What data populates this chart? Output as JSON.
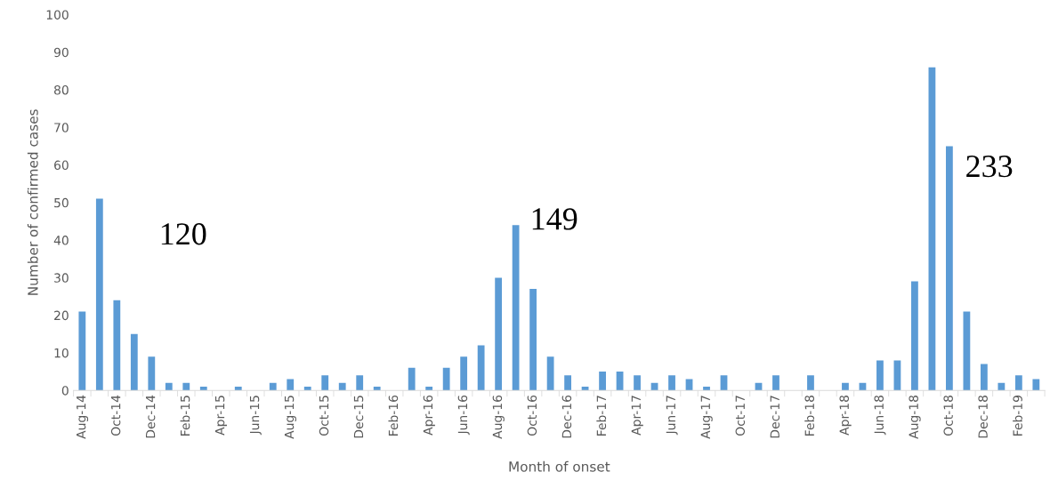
{
  "chart_data": {
    "type": "bar",
    "xlabel": "Month of onset",
    "ylabel": "Number of confirmed cases",
    "categories": [
      "Aug-14",
      null,
      "Oct-14",
      null,
      "Dec-14",
      null,
      "Feb-15",
      null,
      "Apr-15",
      null,
      "Jun-15",
      null,
      "Aug-15",
      null,
      "Oct-15",
      null,
      "Dec-15",
      null,
      "Feb-16",
      null,
      "Apr-16",
      null,
      "Jun-16",
      null,
      "Aug-16",
      null,
      "Oct-16",
      null,
      "Dec-16",
      null,
      "Feb-17",
      null,
      "Apr-17",
      null,
      "Jun-17",
      null,
      "Aug-17",
      null,
      "Oct-17",
      null,
      "Dec-17",
      null,
      "Feb-18",
      null,
      "Apr-18",
      null,
      "Jun-18",
      null,
      "Aug-18",
      null,
      "Oct-18",
      null,
      "Dec-18",
      null,
      "Feb-19",
      null
    ],
    "values": [
      21,
      51,
      24,
      15,
      9,
      2,
      2,
      1,
      0,
      1,
      0,
      2,
      3,
      1,
      4,
      2,
      4,
      1,
      0,
      6,
      1,
      6,
      9,
      12,
      30,
      44,
      27,
      9,
      4,
      1,
      5,
      5,
      4,
      2,
      4,
      3,
      1,
      4,
      0,
      2,
      4,
      0,
      4,
      0,
      2,
      2,
      8,
      8,
      29,
      86,
      65,
      21,
      7,
      2,
      4,
      3
    ],
    "color": "#5b9bd5",
    "ylim": [
      0,
      100
    ],
    "yticks": [
      0,
      10,
      20,
      30,
      40,
      50,
      60,
      70,
      80,
      90,
      100
    ],
    "grid": false,
    "legend": false,
    "annotations": [
      "120",
      "149",
      "233"
    ]
  }
}
